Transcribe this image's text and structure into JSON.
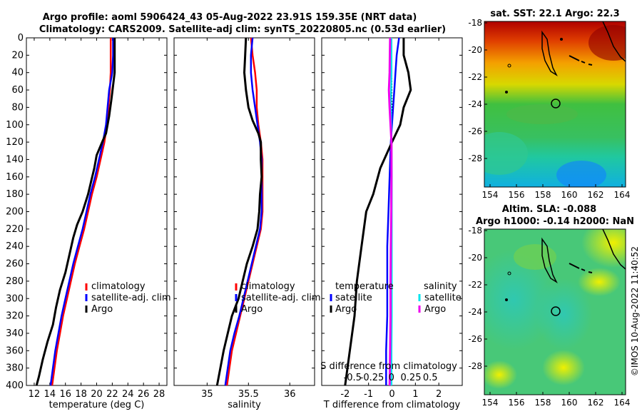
{
  "title": {
    "line1": "Argo profile: aoml 5906424_43 05-Aug-2022 23.91S 159.35E (NRT data)",
    "line2": "Climatology: CARS2009. Satellite-adj clim: synTS_20220805.nc (0.53d earlier)"
  },
  "footer": "©IMOS 10-Aug-2022 11:40:52",
  "colors": {
    "clim": "#ff0000",
    "sat": "#0000ff",
    "argo": "#000000",
    "sat_s": "#00e5ee",
    "argo_s": "#ee00ee"
  },
  "chart_data": [
    {
      "type": "line",
      "name": "temperature",
      "xlabel": "temperature (deg C)",
      "xlim": [
        11,
        29
      ],
      "xticks": [
        12,
        14,
        16,
        18,
        20,
        22,
        24,
        26,
        28
      ],
      "ylim": [
        0,
        400
      ],
      "yticks": [
        0,
        20,
        40,
        60,
        80,
        100,
        120,
        140,
        160,
        180,
        200,
        220,
        240,
        260,
        280,
        300,
        320,
        340,
        360,
        380,
        400
      ],
      "legend": [
        "climatology",
        "satellite-adj. clim",
        "Argo"
      ],
      "series": [
        {
          "name": "climatology",
          "color": "#ff0000",
          "points": [
            [
              21.8,
              0
            ],
            [
              21.8,
              20
            ],
            [
              21.8,
              40
            ],
            [
              21.7,
              60
            ],
            [
              21.5,
              80
            ],
            [
              21.3,
              100
            ],
            [
              21.0,
              120
            ],
            [
              20.5,
              140
            ],
            [
              20.0,
              160
            ],
            [
              19.4,
              180
            ],
            [
              18.9,
              200
            ],
            [
              18.4,
              220
            ],
            [
              17.8,
              240
            ],
            [
              17.2,
              260
            ],
            [
              16.7,
              280
            ],
            [
              16.2,
              300
            ],
            [
              15.7,
              320
            ],
            [
              15.3,
              340
            ],
            [
              14.9,
              360
            ],
            [
              14.6,
              380
            ],
            [
              14.3,
              400
            ]
          ]
        },
        {
          "name": "satellite-adj. clim",
          "color": "#0000ff",
          "points": [
            [
              22.1,
              0
            ],
            [
              22.1,
              20
            ],
            [
              22.0,
              40
            ],
            [
              21.6,
              60
            ],
            [
              21.4,
              80
            ],
            [
              21.2,
              100
            ],
            [
              20.8,
              120
            ],
            [
              20.3,
              140
            ],
            [
              19.8,
              160
            ],
            [
              19.2,
              180
            ],
            [
              18.7,
              200
            ],
            [
              18.2,
              220
            ],
            [
              17.6,
              240
            ],
            [
              17.0,
              260
            ],
            [
              16.5,
              280
            ],
            [
              16.0,
              300
            ],
            [
              15.5,
              320
            ],
            [
              15.1,
              340
            ],
            [
              14.7,
              360
            ],
            [
              14.4,
              380
            ],
            [
              14.1,
              400
            ]
          ]
        },
        {
          "name": "Argo",
          "color": "#000000",
          "points": [
            [
              22.3,
              0
            ],
            [
              22.3,
              20
            ],
            [
              22.3,
              40
            ],
            [
              22.1,
              55
            ],
            [
              21.9,
              70
            ],
            [
              21.6,
              90
            ],
            [
              21.2,
              110
            ],
            [
              20.7,
              120
            ],
            [
              20.0,
              135
            ],
            [
              19.7,
              150
            ],
            [
              19.3,
              165
            ],
            [
              18.9,
              180
            ],
            [
              18.2,
              200
            ],
            [
              17.5,
              215
            ],
            [
              17.0,
              230
            ],
            [
              16.5,
              250
            ],
            [
              16.0,
              270
            ],
            [
              15.3,
              290
            ],
            [
              14.8,
              310
            ],
            [
              14.4,
              330
            ],
            [
              13.7,
              350
            ],
            [
              13.1,
              370
            ],
            [
              12.6,
              390
            ],
            [
              12.3,
              400
            ]
          ]
        }
      ]
    },
    {
      "type": "line",
      "name": "salinity",
      "xlabel": "salinity",
      "xlim": [
        34.6,
        36.3
      ],
      "xticks": [
        35,
        35.5,
        36
      ],
      "ylim": [
        0,
        400
      ],
      "legend": [
        "climatology",
        "satellite-adj. clim",
        "Argo"
      ],
      "series": [
        {
          "name": "climatology",
          "color": "#ff0000",
          "points": [
            [
              35.53,
              0
            ],
            [
              35.55,
              20
            ],
            [
              35.58,
              40
            ],
            [
              35.6,
              60
            ],
            [
              35.6,
              80
            ],
            [
              35.62,
              100
            ],
            [
              35.65,
              120
            ],
            [
              35.67,
              140
            ],
            [
              35.67,
              160
            ],
            [
              35.67,
              180
            ],
            [
              35.67,
              200
            ],
            [
              35.65,
              220
            ],
            [
              35.6,
              240
            ],
            [
              35.55,
              260
            ],
            [
              35.5,
              280
            ],
            [
              35.45,
              300
            ],
            [
              35.4,
              320
            ],
            [
              35.35,
              340
            ],
            [
              35.3,
              360
            ],
            [
              35.27,
              380
            ],
            [
              35.24,
              400
            ]
          ]
        },
        {
          "name": "satellite-adj. clim",
          "color": "#0000ff",
          "points": [
            [
              35.55,
              0
            ],
            [
              35.53,
              20
            ],
            [
              35.53,
              40
            ],
            [
              35.55,
              60
            ],
            [
              35.58,
              80
            ],
            [
              35.61,
              100
            ],
            [
              35.64,
              120
            ],
            [
              35.66,
              140
            ],
            [
              35.66,
              160
            ],
            [
              35.66,
              180
            ],
            [
              35.66,
              200
            ],
            [
              35.64,
              220
            ],
            [
              35.59,
              240
            ],
            [
              35.54,
              260
            ],
            [
              35.49,
              280
            ],
            [
              35.44,
              300
            ],
            [
              35.39,
              320
            ],
            [
              35.33,
              340
            ],
            [
              35.28,
              360
            ],
            [
              35.25,
              380
            ],
            [
              35.22,
              400
            ]
          ]
        },
        {
          "name": "Argo",
          "color": "#000000",
          "points": [
            [
              35.47,
              0
            ],
            [
              35.46,
              20
            ],
            [
              35.45,
              40
            ],
            [
              35.47,
              60
            ],
            [
              35.5,
              80
            ],
            [
              35.55,
              95
            ],
            [
              35.62,
              110
            ],
            [
              35.65,
              120
            ],
            [
              35.65,
              140
            ],
            [
              35.66,
              160
            ],
            [
              35.64,
              180
            ],
            [
              35.63,
              200
            ],
            [
              35.61,
              220
            ],
            [
              35.55,
              240
            ],
            [
              35.48,
              260
            ],
            [
              35.43,
              280
            ],
            [
              35.38,
              300
            ],
            [
              35.3,
              320
            ],
            [
              35.25,
              340
            ],
            [
              35.2,
              360
            ],
            [
              35.16,
              380
            ],
            [
              35.12,
              400
            ]
          ]
        }
      ]
    },
    {
      "type": "line",
      "name": "differences",
      "xlabel": "T difference from climatology",
      "xlabel_top": "S difference from climatology",
      "xlim": [
        -3,
        3
      ],
      "xticks": [
        -2,
        -1,
        0,
        1,
        2
      ],
      "xticks_top": [
        "-0.5",
        "-0.25",
        "0",
        "0.25",
        "0.5"
      ],
      "ylim": [
        0,
        400
      ],
      "legend": [
        "temperature",
        "satellite",
        "Argo",
        "salinity",
        "satellite",
        "Argo"
      ],
      "series": [
        {
          "name": "T satellite",
          "color": "#0000ff",
          "points": [
            [
              0.3,
              0
            ],
            [
              0.2,
              20
            ],
            [
              0.15,
              40
            ],
            [
              0.1,
              60
            ],
            [
              0.05,
              80
            ],
            [
              -0.05,
              120
            ],
            [
              -0.1,
              160
            ],
            [
              -0.15,
              200
            ],
            [
              -0.2,
              240
            ],
            [
              -0.2,
              280
            ],
            [
              -0.2,
              320
            ],
            [
              -0.25,
              360
            ],
            [
              -0.25,
              400
            ]
          ]
        },
        {
          "name": "T Argo",
          "color": "#000000",
          "points": [
            [
              0.5,
              0
            ],
            [
              0.5,
              20
            ],
            [
              0.7,
              40
            ],
            [
              0.8,
              60
            ],
            [
              0.5,
              80
            ],
            [
              0.35,
              100
            ],
            [
              0.0,
              120
            ],
            [
              -0.5,
              150
            ],
            [
              -0.8,
              180
            ],
            [
              -1.1,
              200
            ],
            [
              -1.3,
              240
            ],
            [
              -1.5,
              280
            ],
            [
              -1.6,
              320
            ],
            [
              -1.8,
              360
            ],
            [
              -2.0,
              400
            ]
          ]
        },
        {
          "name": "S satellite",
          "color": "#00e5ee",
          "points": [
            [
              -0.02,
              0
            ],
            [
              -0.02,
              40
            ],
            [
              -0.05,
              80
            ],
            [
              -0.02,
              120
            ],
            [
              -0.01,
              160
            ],
            [
              -0.01,
              200
            ],
            [
              -0.01,
              240
            ],
            [
              -0.01,
              280
            ],
            [
              -0.01,
              320
            ],
            [
              -0.02,
              360
            ],
            [
              -0.02,
              400
            ]
          ]
        },
        {
          "name": "S Argo",
          "color": "#ee00ee",
          "points": [
            [
              -0.08,
              0
            ],
            [
              -0.09,
              20
            ],
            [
              -0.1,
              40
            ],
            [
              -0.13,
              60
            ],
            [
              -0.1,
              80
            ],
            [
              -0.06,
              100
            ],
            [
              -0.02,
              120
            ],
            [
              -0.02,
              160
            ],
            [
              -0.03,
              200
            ],
            [
              -0.05,
              240
            ],
            [
              -0.06,
              280
            ],
            [
              -0.06,
              320
            ],
            [
              -0.08,
              360
            ],
            [
              -0.1,
              400
            ]
          ]
        }
      ]
    }
  ],
  "maps": {
    "sst": {
      "title": "sat. SST: 22.1 Argo: 22.3",
      "xticks": [
        "154",
        "156",
        "158",
        "160",
        "162",
        "164"
      ],
      "yticks": [
        "-18",
        "-20",
        "-22",
        "-24",
        "-26",
        "-28"
      ]
    },
    "sla": {
      "title1": "Altim. SLA: -0.088",
      "title2": "Argo h1000: -0.14 h2000: NaN",
      "xticks": [
        "154",
        "156",
        "158",
        "160",
        "162",
        "164"
      ],
      "yticks": [
        "-18",
        "-20",
        "-22",
        "-24",
        "-26",
        "-28"
      ]
    }
  }
}
